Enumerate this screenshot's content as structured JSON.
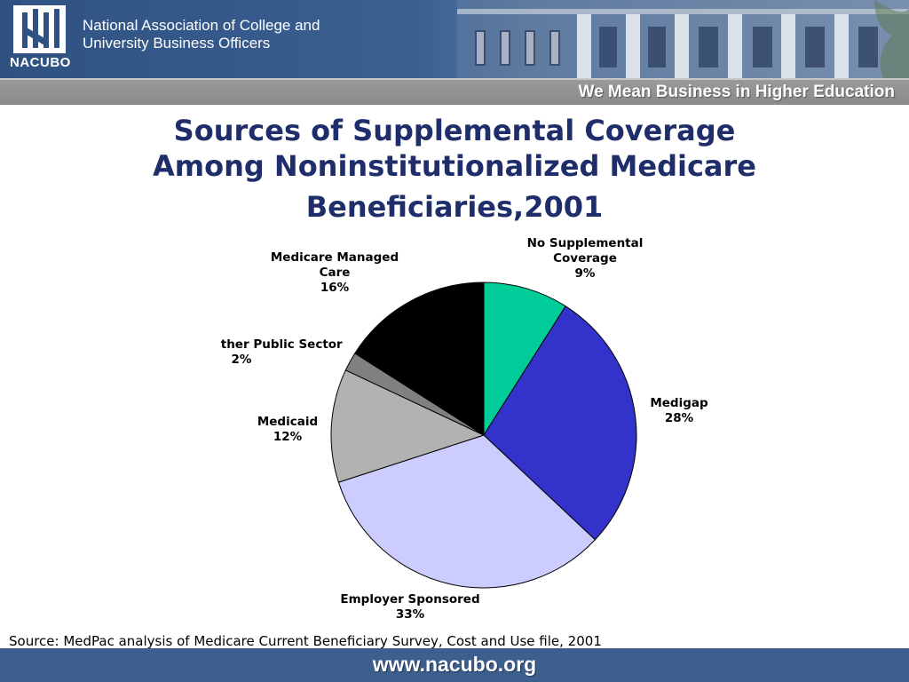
{
  "header": {
    "logo_text": "NACUBO",
    "org_name_line1": "National Association of College and",
    "org_name_line2": "University Business Officers",
    "tagline": "We Mean Business in Higher Education",
    "logo_icon": "nacubo-logo-icon",
    "banner_image": "building-columns-image"
  },
  "title": {
    "line1": "Sources of Supplemental Coverage",
    "line2": "Among Noninstitutionalized Medicare",
    "line3": "Beneficiaries,2001"
  },
  "chart_data": {
    "type": "pie",
    "title": "Sources of Supplemental Coverage Among Noninstitutionalized Medicare Beneficiaries,2001",
    "slices": [
      {
        "label": "No Supplemental Coverage",
        "value": 9,
        "display": "9%",
        "color": "#00cc99"
      },
      {
        "label": "Medigap",
        "value": 28,
        "display": "28%",
        "color": "#3333cc"
      },
      {
        "label": "Employer Sponsored",
        "value": 33,
        "display": "33%",
        "color": "#ccccff"
      },
      {
        "label": "Medicaid",
        "value": 12,
        "display": "12%",
        "color": "#b2b2b2"
      },
      {
        "label": "Other Public Sector",
        "value": 2,
        "display": "2%",
        "color": "#808080"
      },
      {
        "label": "Medicare Managed Care",
        "value": 16,
        "display": "16%",
        "color": "#000000"
      }
    ],
    "legend": "none"
  },
  "labels": {
    "no_supp_line1": "No Supplemental",
    "no_supp_line2": "Coverage",
    "no_supp_pct": "9%",
    "medigap": "Medigap",
    "medigap_pct": "28%",
    "employer": "Employer Sponsored",
    "employer_pct": "33%",
    "medicaid": "Medicaid",
    "medicaid_pct": "12%",
    "other_public": "Other Public Sector",
    "other_public_pct": "2%",
    "managed_line1": "Medicare Managed",
    "managed_line2": "Care",
    "managed_pct": "16%"
  },
  "footer": {
    "source": "Source: MedPac analysis of Medicare Current Beneficiary Survey, Cost and Use file, 2001",
    "url": "www.nacubo.org"
  }
}
